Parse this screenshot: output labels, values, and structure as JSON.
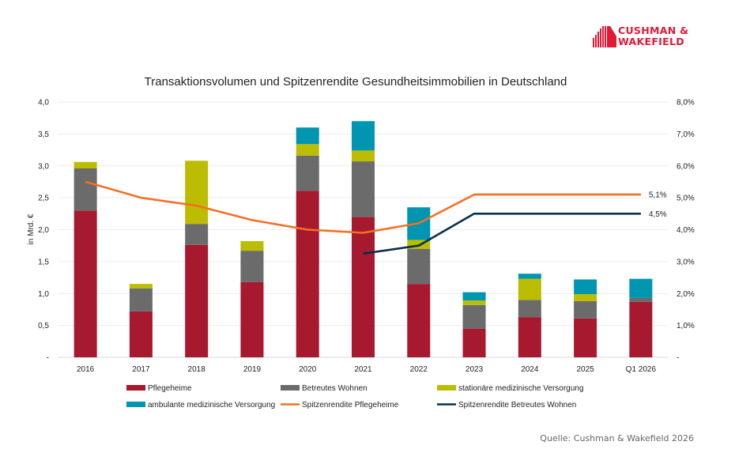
{
  "logo": {
    "line1": "CUSHMAN &",
    "line2": "WAKEFIELD",
    "color": "#e31937"
  },
  "source": "Quelle: Cushman & Wakefield 2026",
  "chart_data": {
    "type": "bar",
    "stacked": true,
    "title": "Transaktionsvolumen und Spitzenrendite Gesundheitsimmobilien in Deutschland",
    "ylabel": "in Mrd. €",
    "y2label": "",
    "xlabel": "",
    "ylim": [
      0,
      4.0
    ],
    "y2lim": [
      0,
      8.0
    ],
    "yticks": [
      "-",
      "0,5",
      "1,0",
      "1,5",
      "2,0",
      "2,5",
      "3,0",
      "3,5",
      "4,0"
    ],
    "y2ticks": [
      "-",
      "1,0%",
      "2,0%",
      "3,0%",
      "4,0%",
      "5,0%",
      "6,0%",
      "7,0%",
      "8,0%"
    ],
    "grid": true,
    "legend_position": "bottom",
    "categories": [
      "2016",
      "2017",
      "2018",
      "2019",
      "2020",
      "2021",
      "2022",
      "2023",
      "2024",
      "2025",
      "Q1 2026"
    ],
    "series": [
      {
        "name": "Pflegeheime",
        "kind": "bar",
        "color": "#a6192e",
        "values": [
          2.3,
          0.72,
          1.76,
          1.18,
          2.61,
          2.2,
          1.15,
          0.45,
          0.63,
          0.61,
          0.87
        ]
      },
      {
        "name": "Betreutes Wohnen",
        "kind": "bar",
        "color": "#6b6b6b",
        "values": [
          0.66,
          0.36,
          0.33,
          0.49,
          0.55,
          0.87,
          0.55,
          0.37,
          0.27,
          0.27,
          0.06
        ]
      },
      {
        "name": "stationäre medizinische Versorgung",
        "kind": "bar",
        "color": "#bcbd00",
        "values": [
          0.1,
          0.07,
          0.99,
          0.15,
          0.18,
          0.17,
          0.14,
          0.07,
          0.33,
          0.11,
          0.0
        ]
      },
      {
        "name": "ambulante medizinische Versorgung",
        "kind": "bar",
        "color": "#0095b0",
        "values": [
          0.0,
          0.0,
          0.0,
          0.0,
          0.26,
          0.46,
          0.51,
          0.13,
          0.08,
          0.23,
          0.3
        ]
      },
      {
        "name": "Spitzenrendite Pflegeheime",
        "kind": "line",
        "axis": "right",
        "color": "#f56f23",
        "values": [
          5.5,
          5.0,
          4.75,
          4.3,
          4.0,
          3.9,
          4.2,
          5.1,
          5.1,
          5.1,
          5.1
        ],
        "end_label": "5,1%"
      },
      {
        "name": "Spitzenrendite Betreutes Wohnen",
        "kind": "line",
        "axis": "right",
        "color": "#0a2e4f",
        "values": [
          null,
          null,
          null,
          null,
          null,
          3.25,
          3.5,
          4.5,
          4.5,
          4.5,
          4.5
        ],
        "end_label": "4,5%"
      }
    ]
  }
}
